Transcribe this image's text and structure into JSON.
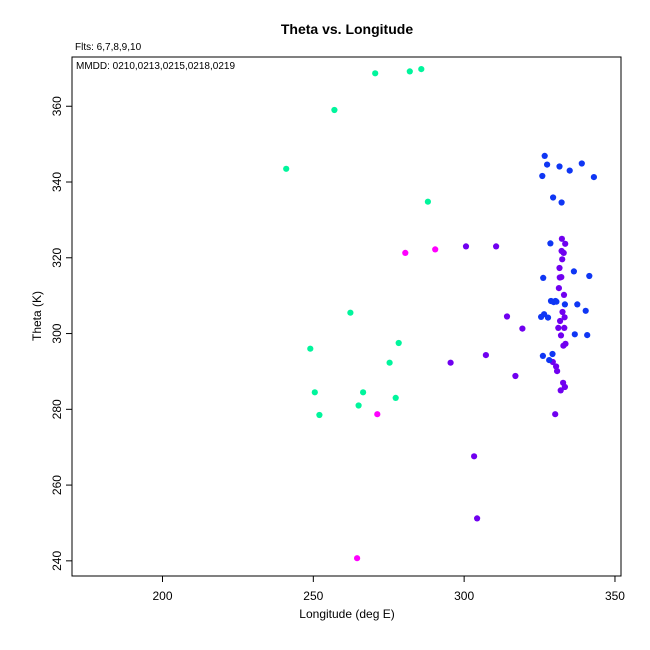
{
  "chart_data": {
    "type": "scatter",
    "title": "Theta vs. Longitude",
    "xlabel": "Longitude (deg E)",
    "ylabel": "Theta (K)",
    "xlim": [
      170,
      352
    ],
    "ylim": [
      236,
      373
    ],
    "xticks": [
      200,
      250,
      300,
      350
    ],
    "yticks": [
      240,
      260,
      280,
      300,
      320,
      340,
      360
    ],
    "annotations": {
      "flights": "Flts: 6,7,8,9,10",
      "dates": "MMDD: 0210,0213,0215,0218,0219"
    },
    "grid": false,
    "series": [
      {
        "color": "#00f59c",
        "points": [
          [
            241,
            343.5
          ],
          [
            249,
            296
          ],
          [
            250.5,
            284.5
          ],
          [
            252,
            278.5
          ],
          [
            257,
            359
          ],
          [
            262.3,
            305.5
          ],
          [
            265,
            281
          ],
          [
            266.5,
            284.5
          ],
          [
            270.5,
            368.7
          ],
          [
            275.3,
            292.3
          ],
          [
            277.3,
            283
          ],
          [
            278.3,
            297.5
          ],
          [
            282,
            369.2
          ],
          [
            285.8,
            369.8
          ],
          [
            288,
            334.8
          ]
        ]
      },
      {
        "color": "#ff00ff",
        "points": [
          [
            264.5,
            240.7
          ],
          [
            271.2,
            278.7
          ],
          [
            280.5,
            321.3
          ],
          [
            290.4,
            322.2
          ]
        ]
      },
      {
        "color": "#7000f0",
        "points": [
          [
            295.5,
            292.3
          ],
          [
            300.6,
            323
          ],
          [
            303.3,
            267.6
          ],
          [
            304.3,
            251.2
          ],
          [
            307.2,
            294.3
          ],
          [
            310.6,
            323
          ],
          [
            314.2,
            304.5
          ],
          [
            317,
            288.8
          ],
          [
            319.3,
            301.3
          ],
          [
            329.4,
            292.5
          ],
          [
            330.2,
            278.7
          ],
          [
            330.5,
            291.3
          ],
          [
            330.8,
            290.1
          ],
          [
            331.2,
            301.5
          ],
          [
            331.4,
            312
          ],
          [
            331.6,
            317.3
          ],
          [
            331.7,
            314.8
          ],
          [
            331.8,
            303.3
          ],
          [
            332,
            285
          ],
          [
            332.1,
            299.5
          ],
          [
            332.3,
            321.8
          ],
          [
            332.4,
            325
          ],
          [
            332.5,
            319.6
          ],
          [
            332.6,
            305.7
          ],
          [
            332.8,
            287
          ],
          [
            332.9,
            296.8
          ],
          [
            333,
            321.3
          ],
          [
            333.1,
            310.2
          ],
          [
            333.2,
            301.5
          ],
          [
            333.3,
            304.3
          ],
          [
            333.4,
            285.9
          ],
          [
            333.5,
            323.7
          ],
          [
            333.6,
            297.3
          ],
          [
            332.2,
            314.9
          ]
        ]
      },
      {
        "color": "#0f36f4",
        "points": [
          [
            325.9,
            341.6
          ],
          [
            326.1,
            294.1
          ],
          [
            326.2,
            314.7
          ],
          [
            326.5,
            305.1
          ],
          [
            326.7,
            346.9
          ],
          [
            327.5,
            344.6
          ],
          [
            327.8,
            304.2
          ],
          [
            328.2,
            293
          ],
          [
            328.6,
            323.8
          ],
          [
            328.8,
            308.6
          ],
          [
            329.3,
            294.6
          ],
          [
            329.5,
            335.9
          ],
          [
            329.7,
            308.3
          ],
          [
            330.3,
            308.6
          ],
          [
            330.6,
            308.4
          ],
          [
            331.6,
            344.1
          ],
          [
            332.3,
            334.6
          ],
          [
            333.4,
            307.7
          ],
          [
            335,
            343
          ],
          [
            336.4,
            316.4
          ],
          [
            336.7,
            299.8
          ],
          [
            337.5,
            307.7
          ],
          [
            339,
            344.9
          ],
          [
            340.3,
            306
          ],
          [
            340.8,
            299.6
          ],
          [
            341.5,
            315.2
          ],
          [
            343,
            341.3
          ],
          [
            325.5,
            304.4
          ]
        ]
      }
    ]
  }
}
